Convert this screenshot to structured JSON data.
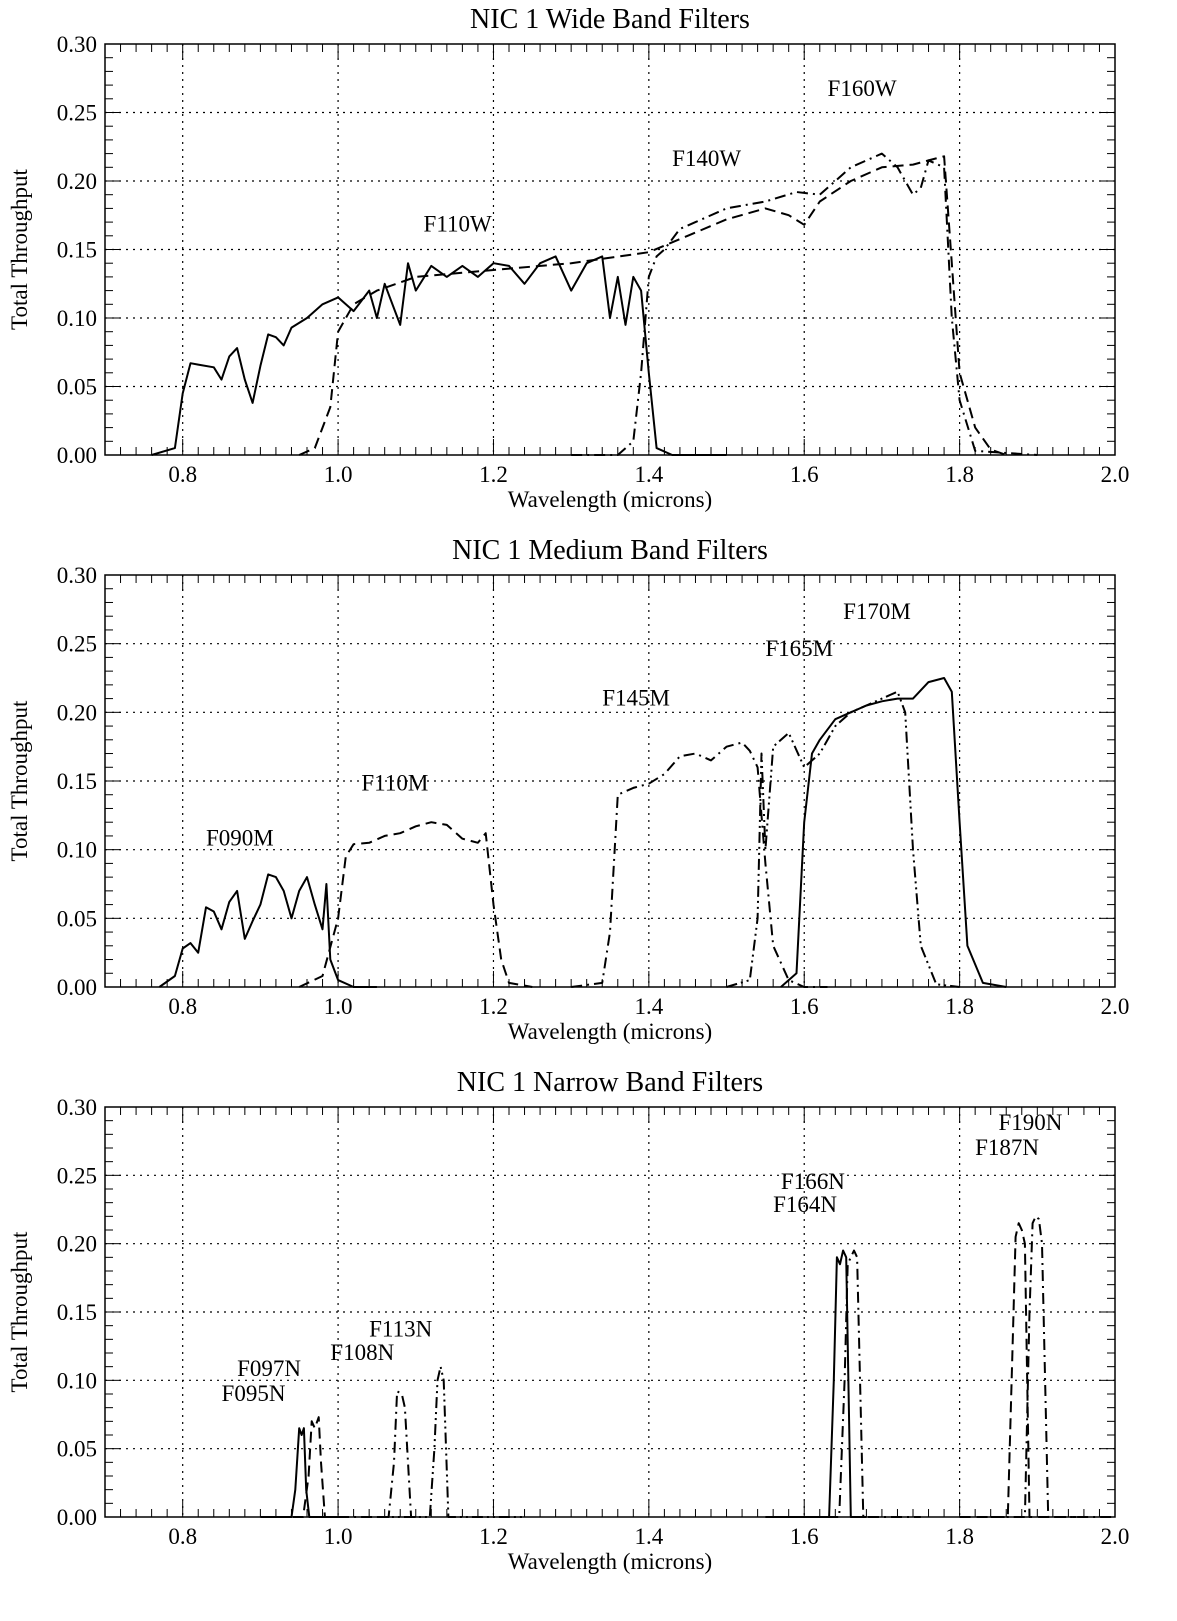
{
  "chart_data": [
    {
      "type": "line",
      "title": "NIC 1 Wide Band Filters",
      "xlabel": "Wavelength (microns)",
      "ylabel": "Total Throughput",
      "xlim": [
        0.7,
        2.0
      ],
      "ylim": [
        0.0,
        0.3
      ],
      "xticks": [
        "0.8",
        "1.0",
        "1.2",
        "1.4",
        "1.6",
        "1.8",
        "2.0"
      ],
      "yticks": [
        "0.00",
        "0.05",
        "0.10",
        "0.15",
        "0.20",
        "0.25",
        "0.30"
      ],
      "grid": true,
      "legend": "none",
      "annotations": [
        {
          "text": "F110W",
          "x": 1.11,
          "y": 0.163
        },
        {
          "text": "F140W",
          "x": 1.43,
          "y": 0.211
        },
        {
          "text": "F160W",
          "x": 1.63,
          "y": 0.262
        }
      ],
      "series": [
        {
          "name": "F110W",
          "style": "solid",
          "x": [
            0.76,
            0.79,
            0.8,
            0.81,
            0.82,
            0.84,
            0.85,
            0.86,
            0.87,
            0.88,
            0.89,
            0.9,
            0.91,
            0.92,
            0.93,
            0.94,
            0.96,
            0.98,
            1.0,
            1.02,
            1.04,
            1.05,
            1.06,
            1.08,
            1.09,
            1.1,
            1.12,
            1.14,
            1.16,
            1.18,
            1.2,
            1.22,
            1.24,
            1.26,
            1.28,
            1.3,
            1.32,
            1.34,
            1.35,
            1.36,
            1.37,
            1.38,
            1.39,
            1.4,
            1.41,
            1.43,
            1.5
          ],
          "y": [
            0.0,
            0.005,
            0.045,
            0.067,
            0.066,
            0.064,
            0.055,
            0.072,
            0.078,
            0.055,
            0.038,
            0.065,
            0.088,
            0.086,
            0.08,
            0.093,
            0.1,
            0.11,
            0.115,
            0.105,
            0.12,
            0.1,
            0.125,
            0.095,
            0.14,
            0.12,
            0.138,
            0.13,
            0.138,
            0.13,
            0.14,
            0.138,
            0.125,
            0.14,
            0.145,
            0.12,
            0.14,
            0.145,
            0.1,
            0.13,
            0.095,
            0.13,
            0.12,
            0.06,
            0.005,
            0.0,
            0.0
          ]
        },
        {
          "name": "F140W",
          "style": "dash-dot",
          "x": [
            1.3,
            1.36,
            1.38,
            1.39,
            1.4,
            1.41,
            1.42,
            1.44,
            1.46,
            1.5,
            1.55,
            1.59,
            1.62,
            1.66,
            1.7,
            1.72,
            1.74,
            1.75,
            1.76,
            1.78,
            1.79,
            1.8,
            1.82,
            1.9
          ],
          "y": [
            0.0,
            0.0,
            0.01,
            0.06,
            0.13,
            0.145,
            0.15,
            0.165,
            0.17,
            0.18,
            0.185,
            0.192,
            0.19,
            0.21,
            0.22,
            0.21,
            0.19,
            0.195,
            0.215,
            0.21,
            0.1,
            0.04,
            0.003,
            0.0
          ]
        },
        {
          "name": "F160W",
          "style": "dashed",
          "x": [
            0.95,
            0.97,
            0.99,
            1.0,
            1.02,
            1.05,
            1.1,
            1.2,
            1.3,
            1.4,
            1.45,
            1.5,
            1.55,
            1.58,
            1.6,
            1.62,
            1.66,
            1.7,
            1.74,
            1.76,
            1.78,
            1.79,
            1.8,
            1.82,
            1.84,
            1.86
          ],
          "y": [
            0.0,
            0.005,
            0.035,
            0.09,
            0.11,
            0.12,
            0.13,
            0.135,
            0.14,
            0.148,
            0.16,
            0.172,
            0.18,
            0.175,
            0.168,
            0.185,
            0.2,
            0.21,
            0.212,
            0.215,
            0.218,
            0.14,
            0.06,
            0.02,
            0.004,
            0.0
          ]
        }
      ]
    },
    {
      "type": "line",
      "title": "NIC 1 Medium Band Filters",
      "xlabel": "Wavelength (microns)",
      "ylabel": "Total Throughput",
      "xlim": [
        0.7,
        2.0
      ],
      "ylim": [
        0.0,
        0.3
      ],
      "xticks": [
        "0.8",
        "1.0",
        "1.2",
        "1.4",
        "1.6",
        "1.8",
        "2.0"
      ],
      "yticks": [
        "0.00",
        "0.05",
        "0.10",
        "0.15",
        "0.20",
        "0.25",
        "0.30"
      ],
      "grid": true,
      "legend": "none",
      "annotations": [
        {
          "text": "F090M",
          "x": 0.83,
          "y": 0.103
        },
        {
          "text": "F110M",
          "x": 1.03,
          "y": 0.143
        },
        {
          "text": "F145M",
          "x": 1.34,
          "y": 0.205
        },
        {
          "text": "F165M",
          "x": 1.55,
          "y": 0.241
        },
        {
          "text": "F170M",
          "x": 1.65,
          "y": 0.268
        }
      ],
      "series": [
        {
          "name": "F090M",
          "style": "solid",
          "x": [
            0.77,
            0.79,
            0.8,
            0.81,
            0.82,
            0.83,
            0.84,
            0.85,
            0.86,
            0.87,
            0.88,
            0.89,
            0.9,
            0.91,
            0.92,
            0.93,
            0.94,
            0.95,
            0.96,
            0.97,
            0.98,
            0.985,
            0.99,
            1.0,
            1.02,
            1.05
          ],
          "y": [
            0.0,
            0.008,
            0.028,
            0.032,
            0.025,
            0.058,
            0.055,
            0.042,
            0.062,
            0.07,
            0.035,
            0.048,
            0.06,
            0.082,
            0.08,
            0.07,
            0.05,
            0.07,
            0.08,
            0.06,
            0.042,
            0.075,
            0.02,
            0.005,
            0.0,
            0.0
          ]
        },
        {
          "name": "F110M",
          "style": "dashed",
          "x": [
            0.95,
            0.98,
            1.0,
            1.01,
            1.02,
            1.04,
            1.06,
            1.08,
            1.1,
            1.12,
            1.14,
            1.16,
            1.18,
            1.19,
            1.2,
            1.21,
            1.22,
            1.25
          ],
          "y": [
            0.0,
            0.008,
            0.05,
            0.095,
            0.104,
            0.105,
            0.11,
            0.112,
            0.117,
            0.12,
            0.118,
            0.108,
            0.105,
            0.112,
            0.06,
            0.02,
            0.003,
            0.0
          ]
        },
        {
          "name": "F145M",
          "style": "dash-dot",
          "x": [
            1.3,
            1.34,
            1.35,
            1.36,
            1.38,
            1.4,
            1.42,
            1.44,
            1.46,
            1.48,
            1.5,
            1.52,
            1.53,
            1.54,
            1.55,
            1.56,
            1.58,
            1.6,
            1.63
          ],
          "y": [
            0.0,
            0.003,
            0.04,
            0.14,
            0.145,
            0.148,
            0.155,
            0.168,
            0.17,
            0.165,
            0.175,
            0.178,
            0.172,
            0.16,
            0.09,
            0.03,
            0.005,
            0.0,
            0.0
          ]
        },
        {
          "name": "F165M",
          "style": "dash-dot-dot",
          "x": [
            1.5,
            1.53,
            1.54,
            1.545,
            1.55,
            1.56,
            1.58,
            1.6,
            1.62,
            1.64,
            1.66,
            1.68,
            1.7,
            1.72,
            1.73,
            1.74,
            1.75,
            1.77,
            1.8
          ],
          "y": [
            0.0,
            0.005,
            0.05,
            0.17,
            0.1,
            0.175,
            0.185,
            0.16,
            0.17,
            0.19,
            0.2,
            0.205,
            0.21,
            0.215,
            0.2,
            0.1,
            0.03,
            0.002,
            0.0
          ]
        },
        {
          "name": "F170M",
          "style": "solid",
          "x": [
            1.57,
            1.59,
            1.6,
            1.61,
            1.62,
            1.64,
            1.66,
            1.68,
            1.7,
            1.72,
            1.74,
            1.76,
            1.78,
            1.79,
            1.8,
            1.81,
            1.83,
            1.86
          ],
          "y": [
            0.0,
            0.01,
            0.12,
            0.17,
            0.18,
            0.195,
            0.2,
            0.205,
            0.208,
            0.21,
            0.21,
            0.222,
            0.225,
            0.215,
            0.12,
            0.03,
            0.003,
            0.0
          ]
        }
      ]
    },
    {
      "type": "line",
      "title": "NIC 1 Narrow Band Filters",
      "xlabel": "Wavelength (microns)",
      "ylabel": "Total Throughput",
      "xlim": [
        0.7,
        2.0
      ],
      "ylim": [
        0.0,
        0.3
      ],
      "xticks": [
        "0.8",
        "1.0",
        "1.2",
        "1.4",
        "1.6",
        "1.8",
        "2.0"
      ],
      "yticks": [
        "0.00",
        "0.05",
        "0.10",
        "0.15",
        "0.20",
        "0.25",
        "0.30"
      ],
      "grid": true,
      "legend": "none",
      "annotations": [
        {
          "text": "F095N",
          "x": 0.85,
          "y": 0.085
        },
        {
          "text": "F097N",
          "x": 0.87,
          "y": 0.103
        },
        {
          "text": "F108N",
          "x": 0.99,
          "y": 0.115
        },
        {
          "text": "F113N",
          "x": 1.04,
          "y": 0.132
        },
        {
          "text": "F164N",
          "x": 1.56,
          "y": 0.223
        },
        {
          "text": "F166N",
          "x": 1.57,
          "y": 0.24
        },
        {
          "text": "F187N",
          "x": 1.82,
          "y": 0.265
        },
        {
          "text": "F190N",
          "x": 1.85,
          "y": 0.283
        }
      ],
      "series": [
        {
          "name": "F095N",
          "style": "solid",
          "x": [
            0.9,
            0.94,
            0.945,
            0.95,
            0.953,
            0.956,
            0.959,
            0.963,
            0.97,
            1.0
          ],
          "y": [
            0.0,
            0.0,
            0.02,
            0.065,
            0.06,
            0.065,
            0.02,
            0.0,
            0.0,
            0.0
          ]
        },
        {
          "name": "F097N",
          "style": "dashed",
          "x": [
            0.92,
            0.955,
            0.962,
            0.966,
            0.97,
            0.975,
            0.978,
            0.983,
            1.0
          ],
          "y": [
            0.0,
            0.0,
            0.03,
            0.07,
            0.065,
            0.073,
            0.04,
            0.0,
            0.0
          ]
        },
        {
          "name": "F108N",
          "style": "dash-dot",
          "x": [
            1.0,
            1.065,
            1.072,
            1.076,
            1.082,
            1.086,
            1.094,
            1.1
          ],
          "y": [
            0.0,
            0.0,
            0.04,
            0.092,
            0.09,
            0.08,
            0.0,
            0.0
          ]
        },
        {
          "name": "F113N",
          "style": "dash-dot-dot",
          "x": [
            1.05,
            1.118,
            1.124,
            1.128,
            1.132,
            1.136,
            1.142,
            1.24
          ],
          "y": [
            0.0,
            0.0,
            0.05,
            0.1,
            0.11,
            0.1,
            0.0,
            0.0
          ]
        },
        {
          "name": "F164N",
          "style": "solid",
          "x": [
            1.55,
            1.632,
            1.638,
            1.642,
            1.646,
            1.65,
            1.654,
            1.66,
            1.68
          ],
          "y": [
            0.0,
            0.0,
            0.1,
            0.19,
            0.185,
            0.195,
            0.19,
            0.0,
            0.0
          ]
        },
        {
          "name": "F166N",
          "style": "dash-dot",
          "x": [
            1.6,
            1.645,
            1.652,
            1.656,
            1.66,
            1.664,
            1.668,
            1.676,
            1.75
          ],
          "y": [
            0.0,
            0.0,
            0.1,
            0.185,
            0.19,
            0.195,
            0.19,
            0.0,
            0.0
          ]
        },
        {
          "name": "F187N",
          "style": "dashed",
          "x": [
            1.8,
            1.862,
            1.868,
            1.872,
            1.876,
            1.88,
            1.884,
            1.89,
            1.95
          ],
          "y": [
            0.0,
            0.0,
            0.12,
            0.205,
            0.215,
            0.21,
            0.2,
            0.0,
            0.0
          ]
        },
        {
          "name": "F190N",
          "style": "dash-dot",
          "x": [
            1.84,
            1.884,
            1.89,
            1.894,
            1.898,
            1.902,
            1.906,
            1.914,
            2.0
          ],
          "y": [
            0.0,
            0.0,
            0.15,
            0.215,
            0.22,
            0.218,
            0.2,
            0.0,
            0.0
          ]
        }
      ]
    }
  ]
}
